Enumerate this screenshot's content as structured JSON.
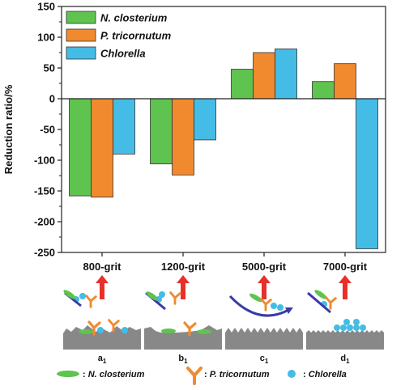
{
  "chart_data": {
    "type": "bar",
    "categories": [
      "800-grit",
      "1200-grit",
      "5000-grit",
      "7000-grit"
    ],
    "series": [
      {
        "name": "N. closterium",
        "color": "#5fc34f",
        "values": [
          -158,
          -106,
          48,
          28
        ]
      },
      {
        "name": "P. tricornutum",
        "color": "#f18a2f",
        "values": [
          -160,
          -124,
          75,
          57
        ]
      },
      {
        "name": "Chlorella",
        "color": "#44bce6",
        "values": [
          -90,
          -67,
          81,
          -244
        ]
      }
    ],
    "ylabel": "Reduction ratio/%",
    "ylim": [
      -250,
      150
    ],
    "yticks": [
      -250,
      -200,
      -150,
      -100,
      -50,
      0,
      50,
      100,
      150
    ],
    "legend_position": "top-left"
  },
  "diagram": {
    "panels": [
      "a",
      "b",
      "c",
      "d"
    ],
    "panel_subscript": "1",
    "arrow_color": "#e8302a",
    "surface_color": "#888888"
  },
  "bottom_legend": {
    "items": [
      {
        "icon": "n-closterium-icon",
        "color": "#5fc34f",
        "prefix": ": ",
        "label": "N. closterium"
      },
      {
        "icon": "p-tricornutum-icon",
        "color": "#f18a2f",
        "prefix": ": ",
        "label": "P. tricornutum"
      },
      {
        "icon": "chlorella-icon",
        "color": "#44bce6",
        "prefix": ": ",
        "label": "Chlorella"
      }
    ]
  }
}
